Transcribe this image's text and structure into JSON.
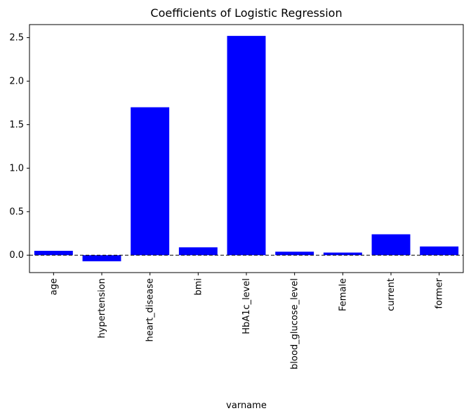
{
  "chart_data": {
    "type": "bar",
    "title": "Coefficients of Logistic Regression",
    "xlabel": "varname",
    "ylabel": "",
    "categories": [
      "age",
      "hypertension",
      "heart_disease",
      "bmi",
      "HbA1c_level",
      "blood_glucose_level",
      "Female",
      "current",
      "former"
    ],
    "values": [
      0.05,
      -0.07,
      1.7,
      0.09,
      2.52,
      0.04,
      0.03,
      0.24,
      0.1
    ],
    "ylim": [
      -0.2,
      2.65
    ],
    "yticks": [
      "0.0",
      "0.5",
      "1.0",
      "1.5",
      "2.0",
      "2.5"
    ],
    "bar_color": "#0000ff",
    "zero_line": "dashed",
    "grid": false
  }
}
